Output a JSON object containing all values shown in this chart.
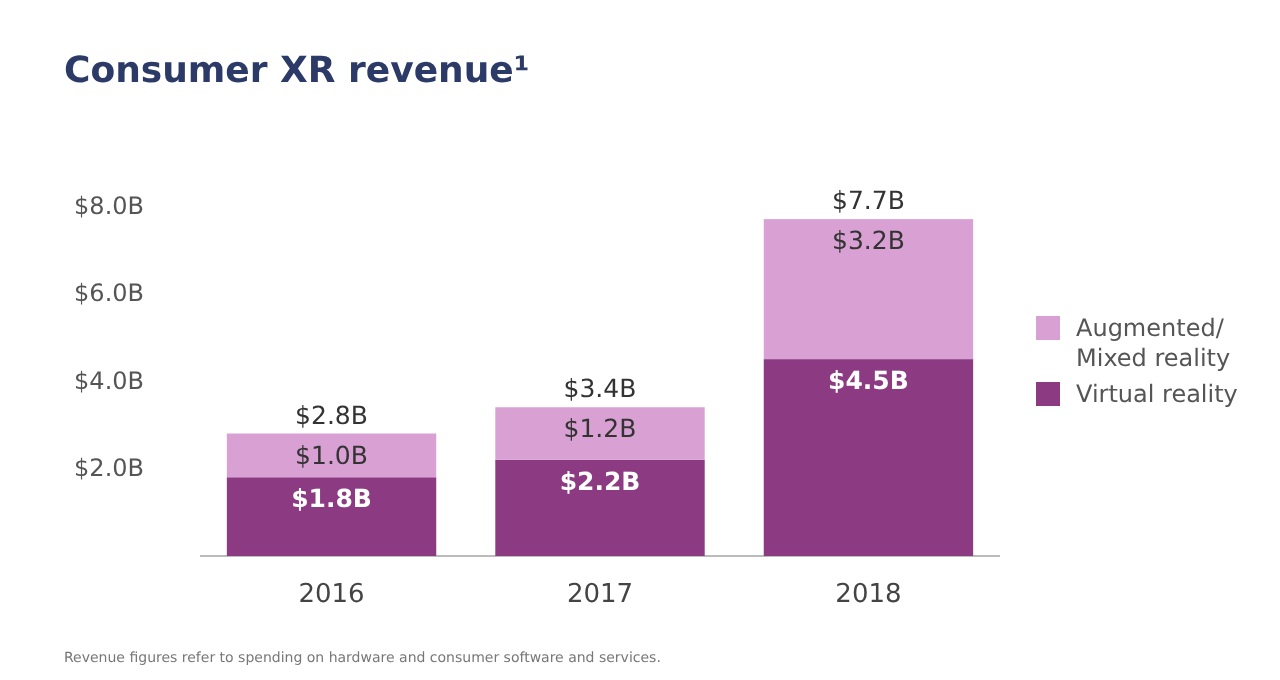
{
  "chart_data": {
    "type": "bar",
    "title": "Consumer XR revenue¹",
    "categories": [
      "2016",
      "2017",
      "2018"
    ],
    "stacked": true,
    "series": [
      {
        "name": "Virtual reality",
        "color": "#8c3a82",
        "values": [
          1.8,
          2.2,
          4.5
        ],
        "value_labels": [
          "$1.8B",
          "$2.2B",
          "$4.5B"
        ]
      },
      {
        "name": "Augmented/ Mixed reality",
        "color": "#d9a1d3",
        "values": [
          1.0,
          1.2,
          3.2
        ],
        "value_labels": [
          "$1.0B",
          "$1.2B",
          "$3.2B"
        ]
      }
    ],
    "totals": [
      "$2.8B",
      "$3.4B",
      "$7.7B"
    ],
    "ylim": [
      0,
      8
    ],
    "yticks": [
      {
        "value": 2,
        "label": "$2.0B"
      },
      {
        "value": 4,
        "label": "$4.0B"
      },
      {
        "value": 6,
        "label": "$6.0B"
      },
      {
        "value": 8,
        "label": "$8.0B"
      }
    ],
    "grid": false,
    "legend": "right",
    "annotations": [
      "Revenue figures refer to spending on hardware and consumer software and services."
    ]
  }
}
